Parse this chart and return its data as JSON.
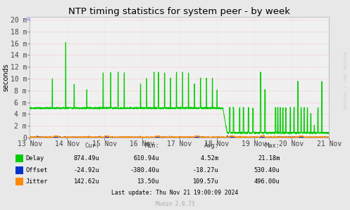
{
  "title": "NTP timing statistics for system peer - by week",
  "ylabel": "seconds",
  "background_color": "#e8e8e8",
  "plot_bg_color": "#f0f0f0",
  "grid_color": "#ff9999",
  "title_fontsize": 9.5,
  "axis_fontsize": 7,
  "ylim": [
    0,
    0.0205
  ],
  "yticks": [
    0,
    0.002,
    0.004,
    0.006,
    0.008,
    0.01,
    0.012,
    0.014,
    0.016,
    0.018,
    0.02
  ],
  "ytick_labels": [
    "0",
    "2 m",
    "4 m",
    "6 m",
    "8 m",
    "10 m",
    "12 m",
    "14 m",
    "16 m",
    "18 m",
    "20 m"
  ],
  "xtick_labels": [
    "13 Nov",
    "14 Nov",
    "15 Nov",
    "16 Nov",
    "17 Nov",
    "18 Nov",
    "19 Nov",
    "20 Nov",
    "21 Nov"
  ],
  "legend_items": [
    {
      "label": "Delay",
      "color": "#00cc00"
    },
    {
      "label": "Offset",
      "color": "#0033cc"
    },
    {
      "label": "Jitter",
      "color": "#ff8800"
    }
  ],
  "stats": {
    "headers": [
      "Cur:",
      "Min:",
      "Avg:",
      "Max:"
    ],
    "rows": [
      [
        "Delay",
        "874.49u",
        "610.94u",
        "4.52m",
        "21.18m"
      ],
      [
        "Offset",
        "-24.92u",
        "-380.40u",
        "-18.27u",
        "530.40u"
      ],
      [
        "Jitter",
        "142.62u",
        "13.50u",
        "109.57u",
        "496.00u"
      ]
    ]
  },
  "last_update": "Last update: Thu Nov 21 19:00:09 2024",
  "munin_version": "Munin 2.0.73",
  "rrdtool_label": "RRDTOOL / TOBI OETIKER",
  "delay_color": "#00cc00",
  "offset_color": "#0033cc",
  "jitter_color": "#ff8800"
}
